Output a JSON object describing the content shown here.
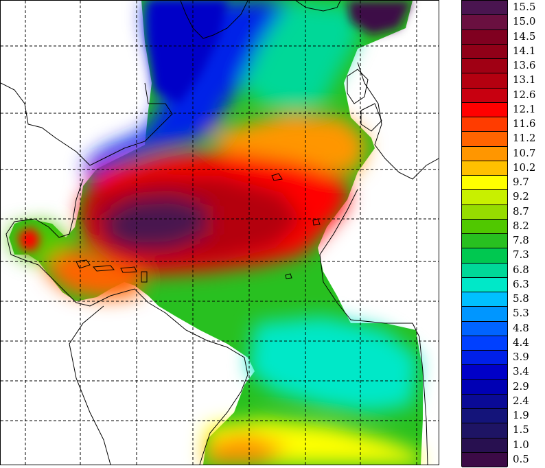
{
  "legend": {
    "levels": [
      "15.5",
      "15.0",
      "14.5",
      "14.1",
      "13.6",
      "13.1",
      "12.6",
      "12.1",
      "11.6",
      "11.2",
      "10.7",
      "10.2",
      "9.7",
      "9.2",
      "8.7",
      "8.2",
      "7.8",
      "7.3",
      "6.8",
      "6.3",
      "5.8",
      "5.3",
      "4.8",
      "4.4",
      "3.9",
      "3.4",
      "2.9",
      "2.4",
      "1.9",
      "1.5",
      "1.0",
      "0.5"
    ],
    "colors": [
      "#4a1550",
      "#6a1040",
      "#800020",
      "#900018",
      "#a00014",
      "#b40010",
      "#c80010",
      "#ff0000",
      "#ff3c00",
      "#ff6400",
      "#ff9600",
      "#ffc000",
      "#ffff00",
      "#c8f000",
      "#96dc00",
      "#50c800",
      "#28c020",
      "#00c850",
      "#00d898",
      "#00e8c8",
      "#00c0ff",
      "#0096ff",
      "#0064ff",
      "#0040ff",
      "#0020e8",
      "#0000c8",
      "#0000b4",
      "#0a0a96",
      "#14147a",
      "#1e1464",
      "#281050",
      "#3c0a46"
    ]
  },
  "map": {
    "colors": {
      "land": "#ffffff",
      "coast": "#000000",
      "grid": "#000000"
    }
  }
}
